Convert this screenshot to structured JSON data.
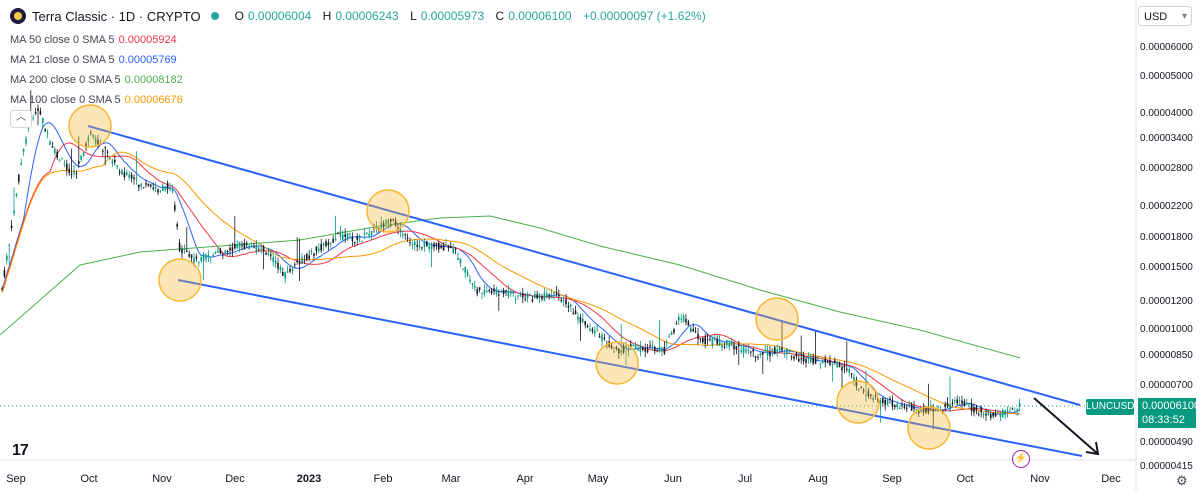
{
  "header": {
    "title": "Terra Classic · 1D · CRYPTO",
    "open_label": "O",
    "open": "0.00006004",
    "high_label": "H",
    "high": "0.00006243",
    "low_label": "L",
    "low": "0.00005973",
    "close_label": "C",
    "close": "0.00006100",
    "change": "+0.00000097 (+1.62%)",
    "status_color": "#26a69a"
  },
  "indicators": [
    {
      "label": "MA 50 close 0 SMA 5",
      "value": "0.00005924",
      "color": "#f23645"
    },
    {
      "label": "MA 21 close 0 SMA 5",
      "value": "0.00005769",
      "color": "#2962ff"
    },
    {
      "label": "MA 200 close 0 SMA 5",
      "value": "0.00008182",
      "color": "#4caf50"
    },
    {
      "label": "MA 100 close 0 SMA 5",
      "value": "0.00006676",
      "color": "#ff9800"
    }
  ],
  "currency": "USD",
  "symbol_tag": "LUNCUSD",
  "last_price": "0.00006100",
  "countdown": "08:33:52",
  "logo_text": "17",
  "colors": {
    "up": "#089981",
    "down": "#131722",
    "channel": "#2962ff",
    "circle": "#f7b733"
  },
  "chart_data": {
    "type": "candlestick",
    "y_scale": "log",
    "ylim": [
      4e-05,
      6.5e-05
    ],
    "y_ticks": [
      "0.00006000",
      "0.00005000",
      "0.00004000",
      "0.00003400",
      "0.00002800",
      "0.00002200",
      "0.00001800",
      "0.00001500",
      "0.00001200",
      "0.00001000",
      "0.00000850",
      "0.00000700",
      "0.00000490",
      "0.00000415"
    ],
    "x_ticks": [
      "Sep",
      "Oct",
      "Nov",
      "Dec",
      "2023",
      "Feb",
      "Mar",
      "Apr",
      "May",
      "Jun",
      "Jul",
      "Aug",
      "Sep",
      "Oct",
      "Nov",
      "Dec"
    ],
    "channel": {
      "upper": [
        [
          "Oct",
          "0.00003700"
        ],
        [
          "Nov",
          "0.00000700"
        ]
      ],
      "lower": [
        [
          "Nov",
          "0.00001400"
        ],
        [
          "Dec",
          "0.00000440"
        ]
      ]
    },
    "touch_points": [
      "Oct",
      "Nov",
      "Feb",
      "May",
      "Jul",
      "Aug",
      "Sep"
    ]
  }
}
